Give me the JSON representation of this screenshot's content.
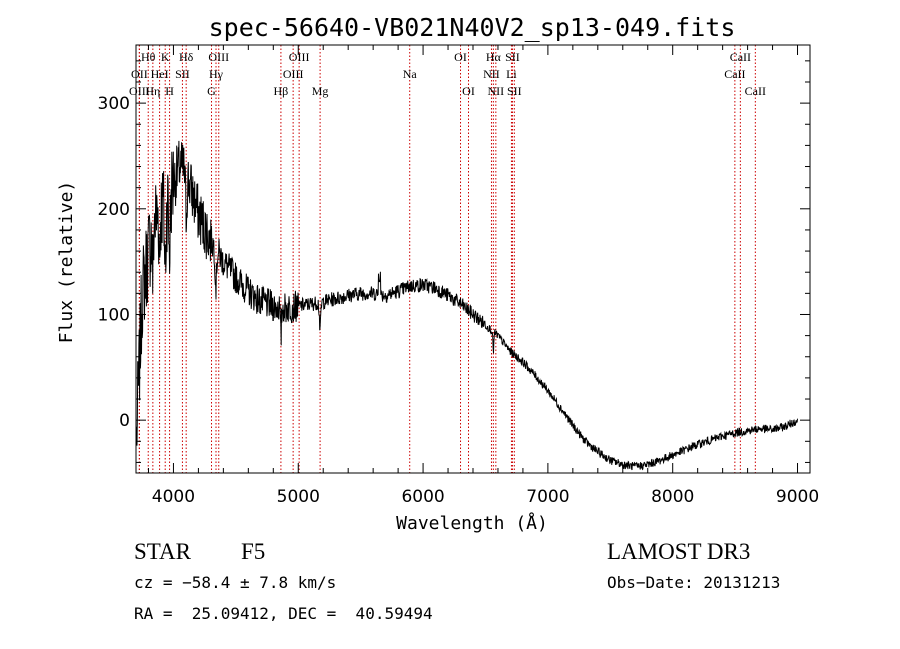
{
  "chart_data": {
    "type": "line",
    "title": "spec-56640-VB021N40V2_sp13-049.fits",
    "xlabel": "Wavelength (Å)",
    "ylabel": "Flux (relative)",
    "xlim": [
      3700,
      9100
    ],
    "ylim": [
      -50,
      355
    ],
    "xticks": [
      4000,
      5000,
      6000,
      7000,
      8000,
      9000
    ],
    "xtick_labels": [
      "4000",
      "5000",
      "6000",
      "7000",
      "8000",
      "9000"
    ],
    "yticks": [
      0,
      100,
      200,
      300
    ],
    "ytick_labels": [
      "0",
      "100",
      "200",
      "300"
    ],
    "grid": false,
    "colors": {
      "spectrum": "#000000",
      "line_marker": "#cc0000",
      "axes": "#000000"
    },
    "spectrum_anchor_points": [
      {
        "x": 3700,
        "y": -30
      },
      {
        "x": 3750,
        "y": 120
      },
      {
        "x": 3800,
        "y": 160
      },
      {
        "x": 3850,
        "y": 190
      },
      {
        "x": 3900,
        "y": 200
      },
      {
        "x": 3950,
        "y": 210
      },
      {
        "x": 4000,
        "y": 225
      },
      {
        "x": 4050,
        "y": 240
      },
      {
        "x": 4100,
        "y": 235
      },
      {
        "x": 4150,
        "y": 215
      },
      {
        "x": 4200,
        "y": 195
      },
      {
        "x": 4300,
        "y": 170
      },
      {
        "x": 4400,
        "y": 150
      },
      {
        "x": 4500,
        "y": 135
      },
      {
        "x": 4600,
        "y": 122
      },
      {
        "x": 4700,
        "y": 112
      },
      {
        "x": 4800,
        "y": 108
      },
      {
        "x": 4900,
        "y": 106
      },
      {
        "x": 5000,
        "y": 108
      },
      {
        "x": 5100,
        "y": 110
      },
      {
        "x": 5200,
        "y": 112
      },
      {
        "x": 5300,
        "y": 115
      },
      {
        "x": 5400,
        "y": 118
      },
      {
        "x": 5500,
        "y": 120
      },
      {
        "x": 5600,
        "y": 120
      },
      {
        "x": 5700,
        "y": 118
      },
      {
        "x": 5800,
        "y": 122
      },
      {
        "x": 5900,
        "y": 127
      },
      {
        "x": 6000,
        "y": 128
      },
      {
        "x": 6100,
        "y": 125
      },
      {
        "x": 6200,
        "y": 118
      },
      {
        "x": 6300,
        "y": 110
      },
      {
        "x": 6400,
        "y": 100
      },
      {
        "x": 6500,
        "y": 90
      },
      {
        "x": 6600,
        "y": 80
      },
      {
        "x": 6700,
        "y": 65
      },
      {
        "x": 6800,
        "y": 55
      },
      {
        "x": 6900,
        "y": 42
      },
      {
        "x": 7000,
        "y": 28
      },
      {
        "x": 7100,
        "y": 12
      },
      {
        "x": 7200,
        "y": -5
      },
      {
        "x": 7300,
        "y": -20
      },
      {
        "x": 7400,
        "y": -30
      },
      {
        "x": 7500,
        "y": -38
      },
      {
        "x": 7600,
        "y": -42
      },
      {
        "x": 7700,
        "y": -44
      },
      {
        "x": 7800,
        "y": -42
      },
      {
        "x": 7900,
        "y": -38
      },
      {
        "x": 8000,
        "y": -33
      },
      {
        "x": 8100,
        "y": -28
      },
      {
        "x": 8200,
        "y": -23
      },
      {
        "x": 8300,
        "y": -19
      },
      {
        "x": 8400,
        "y": -15
      },
      {
        "x": 8500,
        "y": -12
      },
      {
        "x": 8600,
        "y": -10
      },
      {
        "x": 8700,
        "y": -8
      },
      {
        "x": 8800,
        "y": -9
      },
      {
        "x": 8900,
        "y": -6
      },
      {
        "x": 9000,
        "y": 0
      }
    ],
    "spectral_lines": [
      {
        "label": "Hθ",
        "wavelength": 3798,
        "row": 0
      },
      {
        "label": "OII",
        "wavelength": 3727,
        "row": 1
      },
      {
        "label": "HeI",
        "wavelength": 3889,
        "row": 1
      },
      {
        "label": "OIII",
        "wavelength": 3727,
        "row": 2
      },
      {
        "label": "Hη",
        "wavelength": 3835,
        "row": 2
      },
      {
        "label": "K",
        "wavelength": 3934,
        "row": 0
      },
      {
        "label": "H",
        "wavelength": 3969,
        "row": 2
      },
      {
        "label": "Hδ",
        "wavelength": 4102,
        "row": 0
      },
      {
        "label": "SII",
        "wavelength": 4072,
        "row": 1
      },
      {
        "label": "OIII",
        "wavelength": 4363,
        "row": 0
      },
      {
        "label": "Hγ",
        "wavelength": 4341,
        "row": 1
      },
      {
        "label": "G",
        "wavelength": 4305,
        "row": 2
      },
      {
        "label": "Hβ",
        "wavelength": 4861,
        "row": 2
      },
      {
        "label": "OIII",
        "wavelength": 5007,
        "row": 0
      },
      {
        "label": "OIII",
        "wavelength": 4959,
        "row": 1
      },
      {
        "label": "Mg",
        "wavelength": 5175,
        "row": 2
      },
      {
        "label": "Na",
        "wavelength": 5893,
        "row": 1
      },
      {
        "label": "OI",
        "wavelength": 6300,
        "row": 0
      },
      {
        "label": "OI",
        "wavelength": 6364,
        "row": 2
      },
      {
        "label": "Hα",
        "wavelength": 6563,
        "row": 0
      },
      {
        "label": "SII",
        "wavelength": 6716,
        "row": 0
      },
      {
        "label": "NII",
        "wavelength": 6548,
        "row": 1
      },
      {
        "label": "Li",
        "wavelength": 6708,
        "row": 1
      },
      {
        "label": "NII",
        "wavelength": 6583,
        "row": 2
      },
      {
        "label": "SII",
        "wavelength": 6731,
        "row": 2
      },
      {
        "label": "CaII",
        "wavelength": 8542,
        "row": 0
      },
      {
        "label": "CaII",
        "wavelength": 8498,
        "row": 1
      },
      {
        "label": "CaII",
        "wavelength": 8662,
        "row": 2
      }
    ]
  },
  "info": {
    "class": "STAR",
    "subclass": "F5",
    "cz": "cz = −58.4 ± 7.8 km/s",
    "coords": "RA =  25.09412, DEC =  40.59494",
    "survey": "LAMOST DR3",
    "obs_date": "Obs−Date: 20131213"
  }
}
